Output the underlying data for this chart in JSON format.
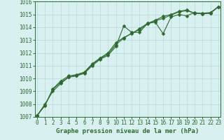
{
  "xlabel": "Graphe pression niveau de la mer (hPa)",
  "background_color": "#d8f0f0",
  "grid_color": "#b8d8d8",
  "line_color": "#2d6a2d",
  "x_values": [
    0,
    1,
    2,
    3,
    4,
    5,
    6,
    7,
    8,
    9,
    10,
    11,
    12,
    13,
    14,
    15,
    16,
    17,
    18,
    19,
    20,
    21,
    22,
    23
  ],
  "line1": [
    1007.1,
    1008.0,
    1009.0,
    1009.6,
    1010.1,
    1010.2,
    1010.4,
    1011.0,
    1011.5,
    1011.8,
    1012.5,
    1014.1,
    1013.6,
    1013.6,
    1014.3,
    1014.4,
    1013.5,
    1014.8,
    1015.0,
    1014.9,
    1015.15,
    1015.05,
    1015.1,
    1015.6
  ],
  "line2": [
    1007.1,
    1007.9,
    1009.2,
    1009.8,
    1010.2,
    1010.3,
    1010.5,
    1011.15,
    1011.6,
    1012.0,
    1012.8,
    1013.2,
    1013.5,
    1013.9,
    1014.3,
    1014.55,
    1014.85,
    1015.0,
    1015.25,
    1015.35,
    1015.1,
    1015.1,
    1015.15,
    1015.6
  ],
  "line3": [
    1007.1,
    1007.9,
    1009.15,
    1009.7,
    1010.1,
    1010.25,
    1010.45,
    1011.1,
    1011.55,
    1011.9,
    1012.65,
    1013.15,
    1013.55,
    1013.8,
    1014.25,
    1014.5,
    1014.7,
    1014.95,
    1015.2,
    1015.3,
    1015.1,
    1015.05,
    1015.1,
    1015.6
  ],
  "ylim_min": 1007,
  "ylim_max": 1016,
  "yticks": [
    1007,
    1008,
    1009,
    1010,
    1011,
    1012,
    1013,
    1014,
    1015,
    1016
  ],
  "xticks": [
    0,
    1,
    2,
    3,
    4,
    5,
    6,
    7,
    8,
    9,
    10,
    11,
    12,
    13,
    14,
    15,
    16,
    17,
    18,
    19,
    20,
    21,
    22,
    23
  ],
  "marker_size": 2.5,
  "line_width": 0.8,
  "xlabel_fontsize": 6.5,
  "tick_fontsize": 5.5,
  "xlabel_color": "#2d6a2d",
  "tick_color": "#2d6a2d",
  "axis_color": "#2d6a2d"
}
